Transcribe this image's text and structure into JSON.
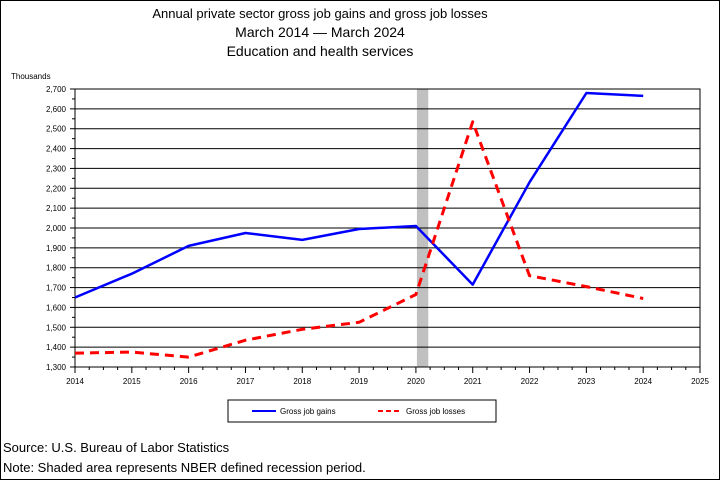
{
  "chart_data": {
    "type": "line",
    "title": "Annual private sector gross job gains and gross job losses",
    "subtitle_dates": "March 2014 — March 2024",
    "subtitle_industry": "Education and health services",
    "ylabel": "Thousands",
    "ylim": [
      1300,
      2700
    ],
    "yticks": [
      1300,
      1400,
      1500,
      1600,
      1700,
      1800,
      1900,
      2000,
      2100,
      2200,
      2300,
      2400,
      2500,
      2600,
      2700
    ],
    "ytick_labels": [
      "1,300",
      "1,400",
      "1,500",
      "1,600",
      "1,700",
      "1,800",
      "1,900",
      "2,000",
      "2,100",
      "2,200",
      "2,300",
      "2,400",
      "2,500",
      "2,600",
      "2,700"
    ],
    "xlim": [
      2014,
      2025
    ],
    "xticks": [
      2014,
      2015,
      2016,
      2017,
      2018,
      2019,
      2020,
      2021,
      2022,
      2023,
      2024,
      2025
    ],
    "grid": true,
    "legend_position": "bottom",
    "recession_shading": {
      "start": 2020.0,
      "end": 2020.2,
      "color": "#c0c0c0"
    },
    "x": [
      2014,
      2015,
      2016,
      2017,
      2018,
      2019,
      2020,
      2021,
      2022,
      2023,
      2024
    ],
    "series": [
      {
        "name": "Gross job gains",
        "color": "#0000ff",
        "style": "solid",
        "values": [
          1650,
          1770,
          1910,
          1975,
          1940,
          1995,
          2010,
          1715,
          2230,
          2680,
          2665
        ]
      },
      {
        "name": "Gross job losses",
        "color": "#ff0000",
        "style": "dashed",
        "values": [
          1370,
          1375,
          1350,
          1435,
          1490,
          1525,
          1665,
          2535,
          1760,
          1705,
          1645
        ]
      }
    ]
  },
  "footer": {
    "source": "Source: U.S. Bureau of Labor Statistics",
    "note": "Note: Shaded area represents NBER defined recession period."
  }
}
